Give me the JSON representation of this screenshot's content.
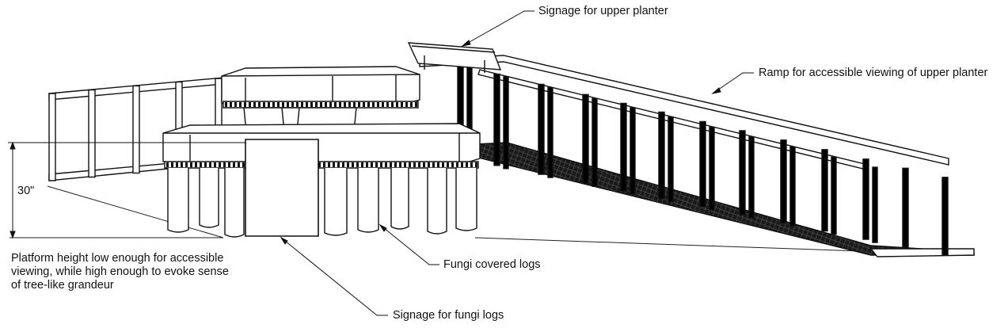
{
  "annotations": {
    "upper_planter_signage": "Signage for upper planter",
    "ramp": "Ramp for accessible viewing of upper planter",
    "height_dimension": "30\"",
    "platform_height_note": "Platform height low enough for accessible viewing, while high enough to evoke sense of tree-like grandeur",
    "fungi_logs": "Fungi covered logs",
    "fungi_signage": "Signage for fungi logs"
  }
}
